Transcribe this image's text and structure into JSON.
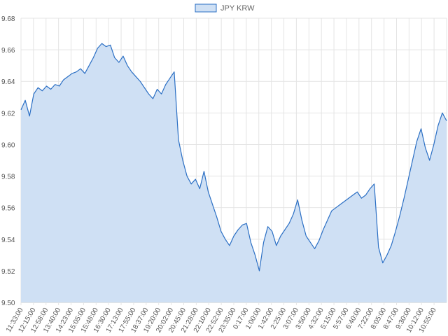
{
  "chart_data": {
    "type": "area",
    "legend": {
      "position": "top-center",
      "entries": [
        "JPY KRW"
      ]
    },
    "series": [
      {
        "name": "JPY KRW",
        "color": "#2b6fc4",
        "fill": "#cfe0f4",
        "values": [
          9.622,
          9.628,
          9.618,
          9.632,
          9.636,
          9.634,
          9.637,
          9.635,
          9.638,
          9.637,
          9.641,
          9.643,
          9.645,
          9.646,
          9.648,
          9.645,
          9.65,
          9.655,
          9.661,
          9.664,
          9.662,
          9.663,
          9.655,
          9.652,
          9.656,
          9.65,
          9.646,
          9.643,
          9.64,
          9.636,
          9.632,
          9.629,
          9.635,
          9.632,
          9.638,
          9.642,
          9.646,
          9.603,
          9.59,
          9.58,
          9.575,
          9.578,
          9.572,
          9.583,
          9.57,
          9.562,
          9.554,
          9.545,
          9.54,
          9.536,
          9.542,
          9.546,
          9.549,
          9.55,
          9.538,
          9.53,
          9.52,
          9.538,
          9.548,
          9.545,
          9.536,
          9.542,
          9.546,
          9.55,
          9.556,
          9.565,
          9.552,
          9.542,
          9.538,
          9.534,
          9.539,
          9.546,
          9.552,
          9.558,
          9.56,
          9.562,
          9.564,
          9.566,
          9.568,
          9.57,
          9.566,
          9.568,
          9.572,
          9.575,
          9.535,
          9.525,
          9.53,
          9.536,
          9.545,
          9.555,
          9.566,
          9.578,
          9.59,
          9.602,
          9.61,
          9.598,
          9.59,
          9.6,
          9.612,
          9.62,
          9.615
        ]
      }
    ],
    "x_tick_labels": [
      "11:33:00",
      "12:15:00",
      "12:58:00",
      "13:40:00",
      "14:23:00",
      "15:05:00",
      "15:48:00",
      "16:30:00",
      "17:13:00",
      "17:55:00",
      "18:37:00",
      "19:20:00",
      "20:02:00",
      "20:45:00",
      "21:28:00",
      "22:10:00",
      "22:52:00",
      "23:35:00",
      "0:17:00",
      "1:00:00",
      "1:42:00",
      "2:25:00",
      "3:07:00",
      "3:50:00",
      "4:32:00",
      "5:15:00",
      "5:57:00",
      "6:40:00",
      "7:22:00",
      "8:05:00",
      "8:47:00",
      "9:30:00",
      "10:12:00",
      "10:55:00"
    ],
    "y_tick_labels": [
      "9.68",
      "9.66",
      "9.64",
      "9.62",
      "9.60",
      "9.58",
      "9.56",
      "9.54",
      "9.52",
      "9.50"
    ],
    "ylim": [
      9.5,
      9.68
    ],
    "grid": true
  }
}
